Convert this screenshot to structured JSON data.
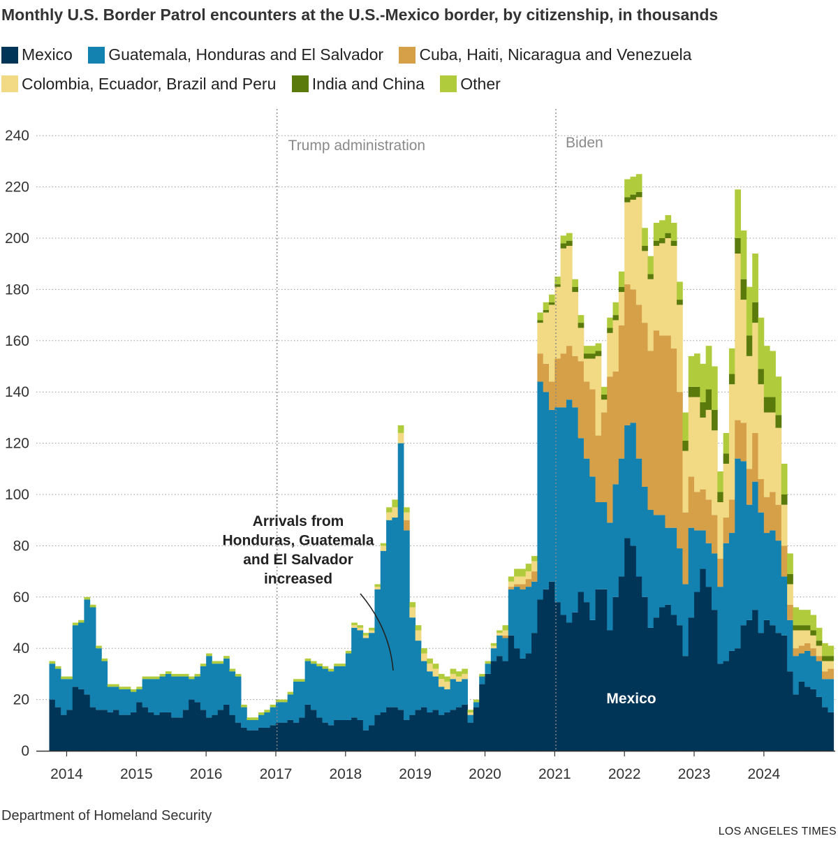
{
  "chart_data": {
    "type": "stacked-bar",
    "title": "Monthly U.S. Border Patrol encounters at the U.S.-Mexico border, by citizenship, in thousands",
    "xlabel": "",
    "ylabel": "",
    "ylim": [
      0,
      250
    ],
    "yticks": [
      0,
      20,
      40,
      60,
      80,
      100,
      120,
      140,
      160,
      180,
      200,
      220,
      240
    ],
    "xticks": [
      "2014",
      "2015",
      "2016",
      "2017",
      "2018",
      "2019",
      "2020",
      "2021",
      "2022",
      "2023",
      "2024"
    ],
    "start_month": "2013-10",
    "months": 135,
    "series": [
      {
        "name": "Mexico",
        "color": "#003557",
        "values": [
          20,
          17,
          14,
          16,
          25,
          24,
          22,
          17,
          16,
          16,
          15,
          16,
          14,
          14,
          15,
          19,
          17,
          15,
          14,
          15,
          15,
          13,
          13,
          16,
          20,
          19,
          16,
          13,
          14,
          16,
          18,
          14,
          11,
          9,
          8,
          8,
          9,
          9,
          10,
          11,
          11,
          12,
          11,
          13,
          18,
          16,
          13,
          11,
          10,
          12,
          12,
          12,
          13,
          12,
          8,
          10,
          14,
          15,
          17,
          17,
          16,
          12,
          14,
          16,
          17,
          15,
          16,
          14,
          15,
          16,
          17,
          18,
          11,
          17,
          26,
          30,
          35,
          37,
          35,
          45,
          40,
          36,
          38,
          46,
          59,
          63,
          66,
          58,
          53,
          50,
          54,
          62,
          58,
          51,
          63,
          63,
          47,
          60,
          68,
          83,
          80,
          68,
          60,
          48,
          52,
          56,
          57,
          53,
          49,
          37,
          52,
          62,
          71,
          64,
          55,
          34,
          35,
          39,
          40,
          49,
          51,
          55,
          46,
          51,
          49,
          46,
          45,
          31,
          22,
          27,
          25,
          24,
          21,
          17,
          15
        ]
      },
      {
        "name": "Guatemala, Honduras and El Salvador",
        "color": "#1482b0",
        "values": [
          14,
          15,
          14,
          12,
          24,
          26,
          37,
          39,
          24,
          19,
          10,
          9,
          10,
          10,
          8,
          5,
          11,
          13,
          14,
          14,
          15,
          16,
          16,
          13,
          8,
          10,
          17,
          24,
          20,
          18,
          18,
          17,
          18,
          8,
          4,
          4,
          5,
          6,
          7,
          8,
          8,
          10,
          16,
          14,
          17,
          18,
          20,
          21,
          21,
          21,
          21,
          26,
          35,
          35,
          36,
          36,
          49,
          63,
          73,
          74,
          104,
          74,
          38,
          27,
          18,
          16,
          13,
          11,
          9,
          12,
          10,
          10,
          3,
          2,
          3,
          4,
          5,
          8,
          9,
          18,
          24,
          27,
          26,
          20,
          85,
          77,
          67,
          76,
          81,
          87,
          80,
          60,
          56,
          56,
          34,
          34,
          42,
          44,
          46,
          44,
          48,
          46,
          43,
          46,
          40,
          36,
          30,
          34,
          30,
          28,
          35,
          24,
          15,
          17,
          22,
          30,
          46,
          46,
          74,
          64,
          45,
          50,
          47,
          34,
          37,
          36,
          23,
          20,
          15,
          11,
          14,
          13,
          14,
          11,
          13
        ]
      },
      {
        "name": "Cuba, Haiti, Nicaragua and Venezuela",
        "color": "#d5a048",
        "values": [
          0,
          0,
          0,
          0,
          0,
          0,
          0,
          0,
          0,
          0,
          0,
          0,
          0,
          0,
          0,
          0,
          0,
          0,
          0,
          0,
          0,
          0,
          0,
          0,
          0,
          0,
          0,
          0,
          0,
          0,
          0,
          0,
          0,
          0,
          0,
          0,
          0,
          0,
          0,
          0,
          0,
          0,
          0,
          0,
          0,
          0,
          0,
          0,
          0,
          0,
          0,
          0,
          0,
          0,
          0,
          0,
          0,
          0,
          0,
          0,
          0,
          4,
          0,
          0,
          0,
          0,
          0,
          0,
          0,
          0,
          0,
          0,
          0,
          0,
          0,
          0,
          0,
          0,
          1,
          1,
          1,
          2,
          3,
          4,
          11,
          11,
          11,
          19,
          21,
          21,
          20,
          30,
          30,
          34,
          26,
          35,
          57,
          44,
          52,
          55,
          52,
          60,
          64,
          62,
          72,
          70,
          75,
          70,
          61,
          28,
          20,
          15,
          16,
          17,
          15,
          11,
          10,
          13,
          15,
          15,
          14,
          19,
          13,
          14,
          15,
          14,
          12,
          6,
          3,
          3,
          3,
          3,
          2,
          3,
          4
        ]
      },
      {
        "name": "Colombia, Ecuador, Brazil and Peru",
        "color": "#f2d983",
        "values": [
          0,
          0,
          0,
          0,
          0,
          0,
          0,
          0,
          0,
          0,
          0,
          0,
          0,
          0,
          0,
          0,
          0,
          0,
          0,
          0,
          0,
          0,
          0,
          0,
          0,
          0,
          0,
          0,
          0,
          0,
          0,
          0,
          0,
          0,
          0,
          0,
          0,
          0,
          0,
          0,
          0,
          0,
          0,
          0,
          0,
          0,
          0,
          0,
          0,
          0,
          0,
          0,
          1,
          1,
          1,
          1,
          1,
          2,
          3,
          4,
          4,
          3,
          4,
          4,
          3,
          3,
          3,
          3,
          3,
          2,
          2,
          2,
          1,
          0,
          0,
          0,
          1,
          1,
          2,
          2,
          3,
          3,
          3,
          4,
          12,
          20,
          30,
          28,
          41,
          39,
          25,
          13,
          9,
          12,
          31,
          5,
          17,
          20,
          13,
          32,
          35,
          42,
          28,
          28,
          33,
          36,
          38,
          40,
          34,
          24,
          31,
          37,
          28,
          35,
          33,
          22,
          21,
          45,
          65,
          48,
          44,
          43,
          37,
          33,
          31,
          30,
          16,
          8,
          7,
          6,
          5,
          5,
          4,
          4,
          3
        ]
      },
      {
        "name": "India and China",
        "color": "#5a7a0c",
        "values": [
          0,
          0,
          0,
          0,
          0,
          0,
          0,
          0,
          0,
          0,
          0,
          0,
          0,
          0,
          0,
          0,
          0,
          0,
          0,
          0,
          0,
          0,
          0,
          0,
          0,
          0,
          0,
          0,
          0,
          0,
          0,
          0,
          0,
          0,
          0,
          0,
          0,
          0,
          0,
          0,
          0,
          0,
          0,
          0,
          0,
          0,
          0,
          0,
          0,
          0,
          0,
          0,
          0,
          0,
          0,
          0,
          0,
          0,
          0,
          0,
          0,
          0,
          0,
          0,
          0,
          0,
          0,
          0,
          0,
          0,
          0,
          0,
          0,
          0,
          0,
          0,
          0,
          0,
          0,
          0,
          0,
          0,
          0,
          0,
          1,
          1,
          1,
          1,
          2,
          2,
          2,
          2,
          2,
          2,
          2,
          2,
          2,
          2,
          2,
          2,
          2,
          2,
          2,
          2,
          2,
          2,
          2,
          2,
          2,
          4,
          4,
          4,
          6,
          8,
          8,
          4,
          4,
          4,
          6,
          8,
          8,
          8,
          6,
          6,
          6,
          5,
          4,
          4,
          2,
          2,
          2,
          2,
          2,
          2,
          2
        ]
      },
      {
        "name": "Other",
        "color": "#b0cc3c",
        "values": [
          1,
          1,
          1,
          1,
          1,
          1,
          1,
          1,
          1,
          1,
          1,
          1,
          1,
          1,
          1,
          1,
          1,
          1,
          1,
          1,
          1,
          1,
          1,
          1,
          1,
          1,
          1,
          1,
          1,
          1,
          1,
          1,
          1,
          1,
          1,
          1,
          1,
          1,
          1,
          1,
          1,
          1,
          1,
          1,
          1,
          1,
          1,
          1,
          1,
          1,
          1,
          1,
          1,
          1,
          1,
          1,
          1,
          1,
          2,
          3,
          3,
          2,
          2,
          2,
          2,
          2,
          2,
          2,
          2,
          2,
          2,
          2,
          1,
          1,
          1,
          1,
          1,
          1,
          2,
          2,
          3,
          3,
          3,
          2,
          3,
          3,
          3,
          3,
          3,
          3,
          3,
          3,
          3,
          3,
          3,
          3,
          4,
          5,
          6,
          7,
          7,
          7,
          7,
          7,
          7,
          7,
          7,
          7,
          7,
          11,
          12,
          13,
          15,
          17,
          17,
          8,
          8,
          10,
          19,
          19,
          19,
          19,
          20,
          20,
          18,
          15,
          12,
          8,
          7,
          6,
          6,
          6,
          5,
          5,
          4
        ]
      }
    ],
    "annotations": {
      "trump": "Trump administration",
      "biden": "Biden",
      "arrivals": [
        "Arrivals from",
        "Honduras, Guatemala",
        "and El Salvador",
        "increased"
      ],
      "mexico_label": "Mexico"
    }
  },
  "source": "Department of Homeland Security",
  "credit": "LOS ANGELES TIMES"
}
